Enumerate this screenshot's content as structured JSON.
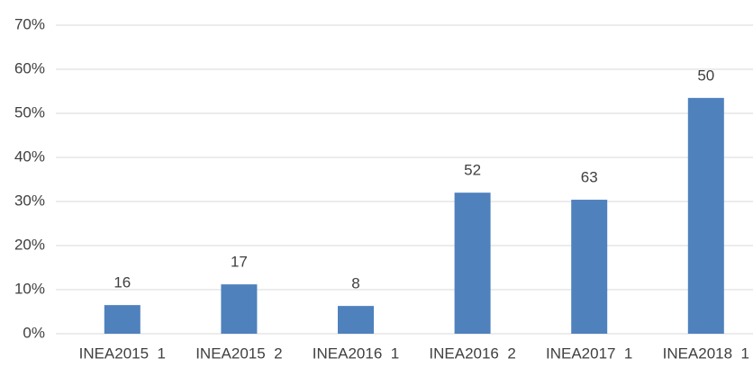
{
  "chart_data": {
    "type": "bar",
    "categories": [
      "INEA2015  1",
      "INEA2015  2",
      "INEA2016  1",
      "INEA2016  2",
      "INEA2017  1",
      "INEA2018  1"
    ],
    "values": [
      6.5,
      11.2,
      6.3,
      32.0,
      30.4,
      53.5
    ],
    "data_labels": [
      16,
      17,
      8,
      52,
      63,
      50
    ],
    "color": "#4f81bd",
    "ylim": [
      0,
      70
    ],
    "yticks": [
      {
        "value": 0,
        "label": "0%"
      },
      {
        "value": 10,
        "label": "10%"
      },
      {
        "value": 20,
        "label": "20%"
      },
      {
        "value": 30,
        "label": "30%"
      },
      {
        "value": 40,
        "label": "40%"
      },
      {
        "value": 50,
        "label": "50%"
      },
      {
        "value": 60,
        "label": "60%"
      },
      {
        "value": 70,
        "label": "70%"
      }
    ],
    "grid": true
  }
}
